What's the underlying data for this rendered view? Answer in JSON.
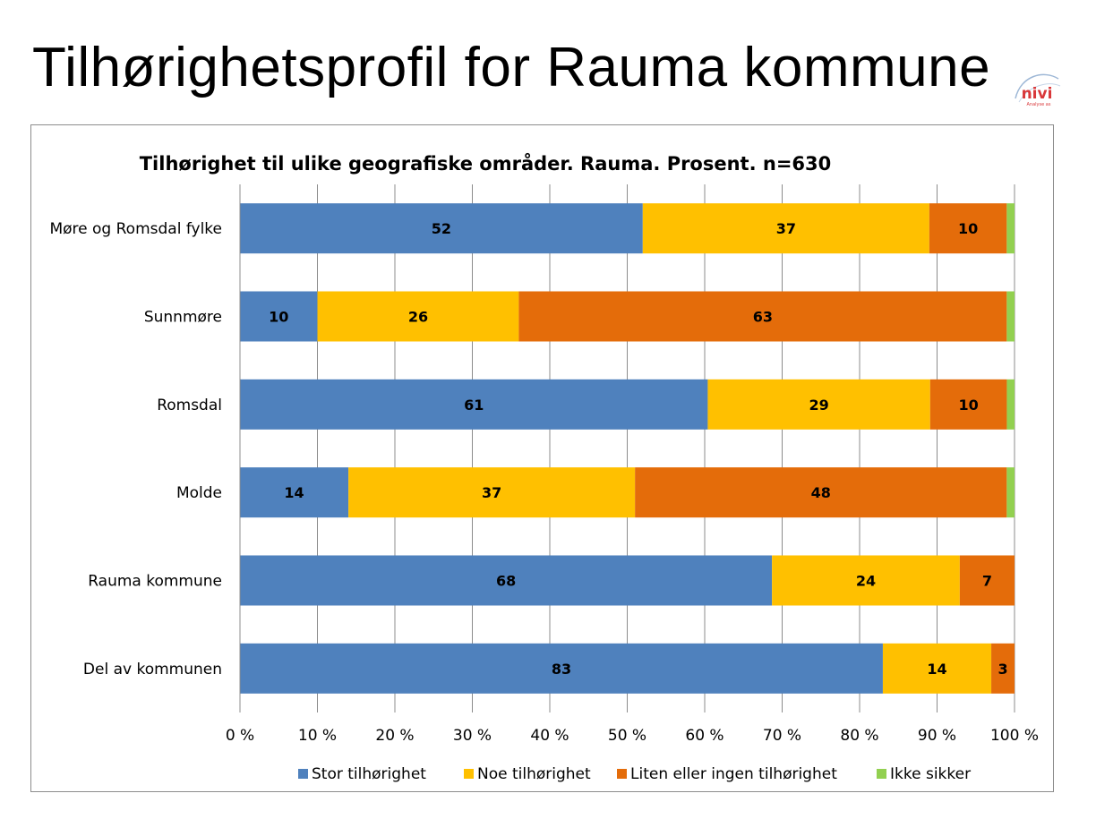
{
  "slide": {
    "title": "Tilhørighetsprofil for Rauma kommune"
  },
  "logo": {
    "text": "nivi",
    "subtext": "Analyse as"
  },
  "colors": {
    "stor": "#4f81bd",
    "noe": "#ffc000",
    "liten": "#e46c0a",
    "ikke": "#92d050"
  },
  "chart_data": {
    "type": "bar",
    "orientation": "horizontal",
    "stacked": "percent",
    "title": "Tilhørighet til ulike geografiske områder. Rauma. Prosent. n=630",
    "categories": [
      "Møre og Romsdal fylke",
      "Sunnmøre",
      "Romsdal",
      "Molde",
      "Rauma kommune",
      "Del av kommunen"
    ],
    "series": [
      {
        "name": "Stor tilhørighet",
        "color": "#4f81bd",
        "values": [
          52,
          10,
          61,
          14,
          68,
          83
        ],
        "labels": [
          "52",
          "10",
          "61",
          "14",
          "68",
          "83"
        ]
      },
      {
        "name": "Noe tilhørighet",
        "color": "#ffc000",
        "values": [
          37,
          26,
          29,
          37,
          24,
          14
        ],
        "labels": [
          "37",
          "26",
          "29",
          "37",
          "24",
          "14"
        ]
      },
      {
        "name": "Liten eller ingen tilhørighet",
        "color": "#e46c0a",
        "values": [
          10,
          63,
          10,
          48,
          7,
          3
        ],
        "labels": [
          "10",
          "63",
          "10",
          "48",
          "7",
          "3"
        ]
      },
      {
        "name": "Ikke sikker",
        "color": "#92d050",
        "values": [
          1,
          1,
          1,
          1,
          0,
          0
        ],
        "labels": [
          "",
          "",
          "",
          "",
          "",
          ""
        ]
      }
    ],
    "xticks": [
      "0 %",
      "10 %",
      "20 %",
      "30 %",
      "40 %",
      "50 %",
      "60 %",
      "70 %",
      "80 %",
      "90 %",
      "100 %"
    ],
    "xlim": [
      0,
      100
    ],
    "grid": true,
    "legend": "bottom"
  }
}
